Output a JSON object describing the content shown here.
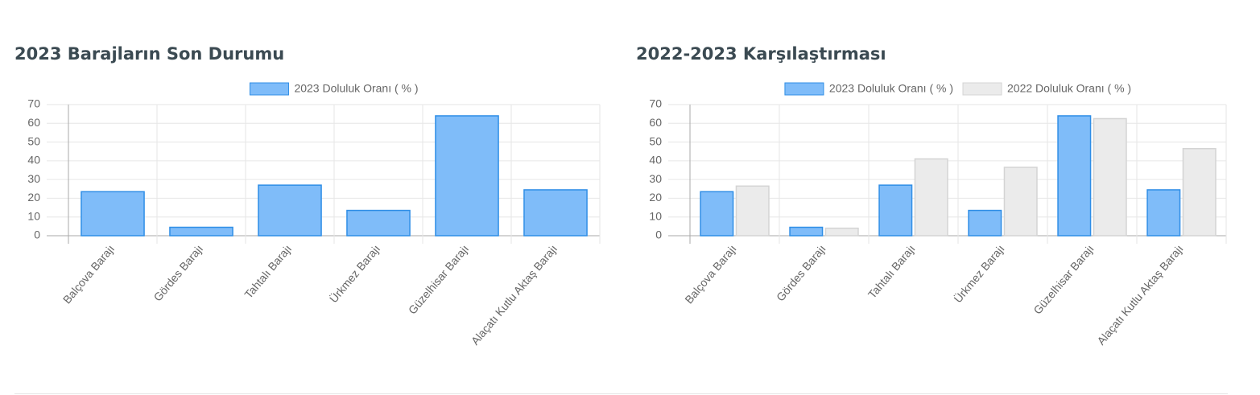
{
  "chart_data": [
    {
      "type": "bar",
      "title": "2023 Barajların Son Durumu",
      "categories": [
        "Balçova Barajı",
        "Gördes Barajı",
        "Tahtalı Barajı",
        "Ürkmez Barajı",
        "Güzelhisar Barajı",
        "Alaçatı Kutlu Aktaş Barajı"
      ],
      "series": [
        {
          "name": "2023 Doluluk Oranı ( % )",
          "color": "#7fbcf9",
          "edgecolor": "#2f8ee6",
          "values": [
            23.5,
            4.5,
            27,
            13.5,
            64,
            24.5
          ]
        }
      ],
      "ylim": [
        0,
        70
      ],
      "yticks": [
        0,
        10,
        20,
        30,
        40,
        50,
        60,
        70
      ],
      "grid": true
    },
    {
      "type": "bar",
      "title": "2022-2023 Karşılaştırması",
      "categories": [
        "Balçova Barajı",
        "Gördes Barajı",
        "Tahtalı Barajı",
        "Ürkmez Barajı",
        "Güzelhisar Barajı",
        "Alaçatı Kutlu Aktaş Barajı"
      ],
      "series": [
        {
          "name": "2023 Doluluk Oranı ( % )",
          "color": "#7fbcf9",
          "edgecolor": "#2f8ee6",
          "values": [
            23.5,
            4.5,
            27,
            13.5,
            64,
            24.5
          ]
        },
        {
          "name": "2022 Doluluk Oranı ( % )",
          "color": "#ebebeb",
          "edgecolor": "#d4d4d4",
          "values": [
            26.5,
            4,
            41,
            36.5,
            62.5,
            46.5
          ]
        }
      ],
      "ylim": [
        0,
        70
      ],
      "yticks": [
        0,
        10,
        20,
        30,
        40,
        50,
        60,
        70
      ],
      "grid": true
    }
  ]
}
